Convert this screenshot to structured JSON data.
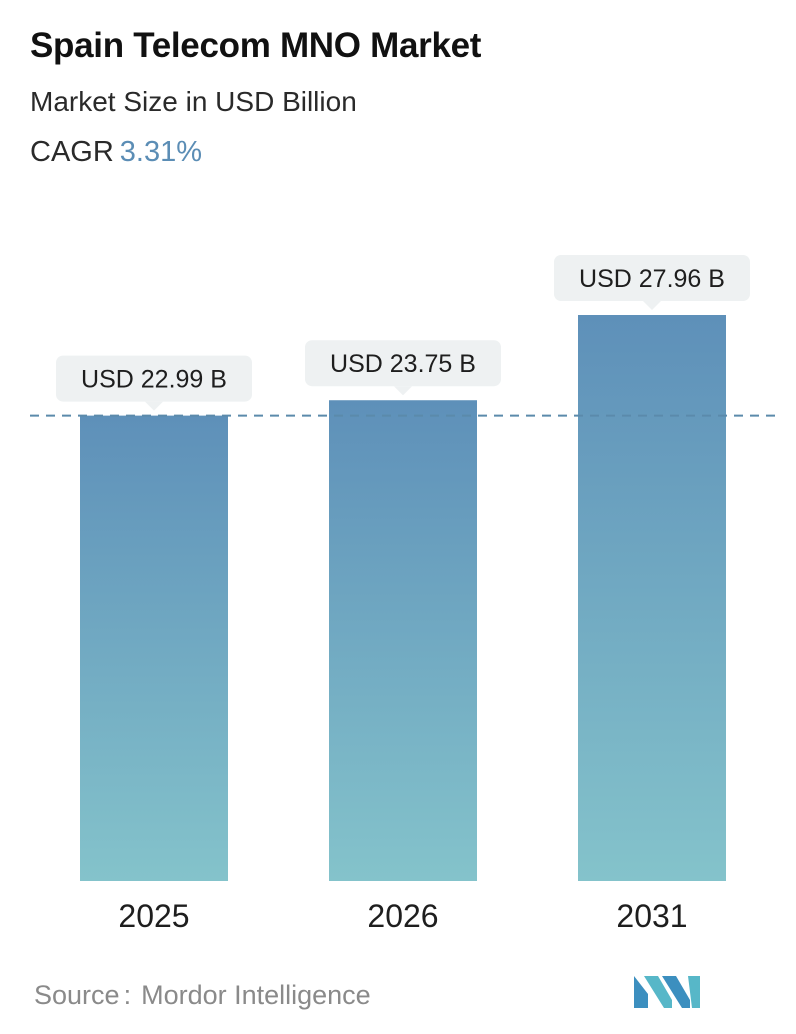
{
  "header": {
    "title": "Spain Telecom MNO Market",
    "subtitle": "Market Size in USD Billion",
    "cagr_label": "CAGR",
    "cagr_value": "3.31%"
  },
  "chart_data": {
    "type": "bar",
    "categories": [
      "2025",
      "2026",
      "2031"
    ],
    "values": [
      22.99,
      23.75,
      27.96
    ],
    "data_labels": [
      "USD 22.99 B",
      "USD 23.75 B",
      "USD 27.96 B"
    ],
    "reference_line_value": 22.99,
    "ylim": [
      0,
      27.96
    ],
    "grid": false,
    "colors": {
      "bar_top": "#5e90b9",
      "bar_bottom": "#84c3cb",
      "callout": "#eef1f2",
      "dashed_line": "#5b8aab"
    }
  },
  "footer": {
    "source_label": "Source",
    "source_separator": ":",
    "source_name": "Mordor Intelligence",
    "logo_icon": "mordor-intelligence-logo"
  }
}
